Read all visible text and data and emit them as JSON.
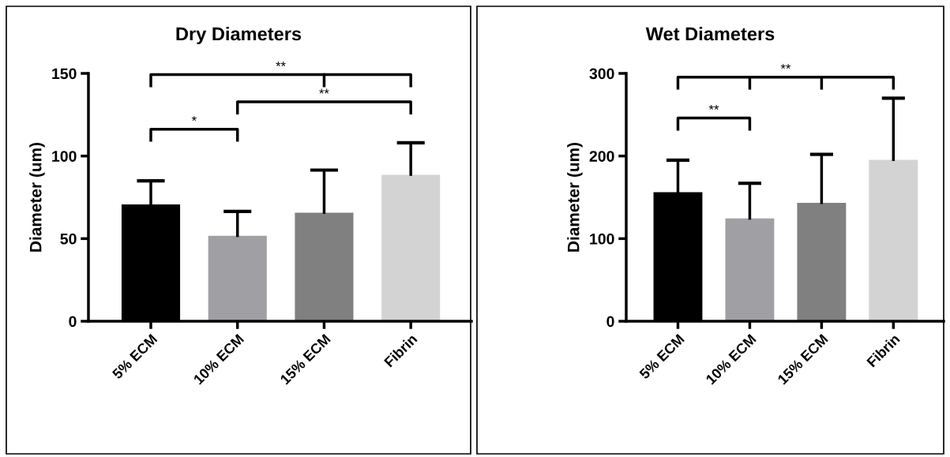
{
  "chart_data": [
    {
      "type": "bar",
      "title": "Dry Diameters",
      "ylabel": "Diameter (um)",
      "categories": [
        "5% ECM",
        "10% ECM",
        "15% ECM",
        "Fibrin"
      ],
      "values": [
        70,
        51,
        65,
        88
      ],
      "colors": [
        "#000000",
        "#a0a0a4",
        "#808080",
        "#d3d3d3"
      ],
      "errors": [
        [
          70,
          85
        ],
        [
          51,
          66.5
        ],
        [
          65,
          91.5
        ],
        [
          88,
          108
        ]
      ],
      "ylim": [
        0,
        150
      ],
      "yticks": [
        0,
        50,
        100,
        150
      ],
      "grid": false,
      "legend": false,
      "annotations": [
        "*",
        "**",
        "**"
      ]
    },
    {
      "type": "bar",
      "title": "Wet Diameters",
      "ylabel": "Diameter (um)",
      "categories": [
        "5% ECM",
        "10% ECM",
        "15% ECM",
        "Fibrin"
      ],
      "values": [
        155,
        123,
        142,
        194
      ],
      "colors": [
        "#000000",
        "#a0a0a4",
        "#808080",
        "#d3d3d3"
      ],
      "errors": [
        [
          155,
          195
        ],
        [
          123,
          167
        ],
        [
          142,
          202
        ],
        [
          194,
          270
        ]
      ],
      "ylim": [
        0,
        300
      ],
      "yticks": [
        0,
        100,
        200,
        300
      ],
      "grid": false,
      "legend": false,
      "annotations": [
        "**",
        "**"
      ]
    }
  ]
}
